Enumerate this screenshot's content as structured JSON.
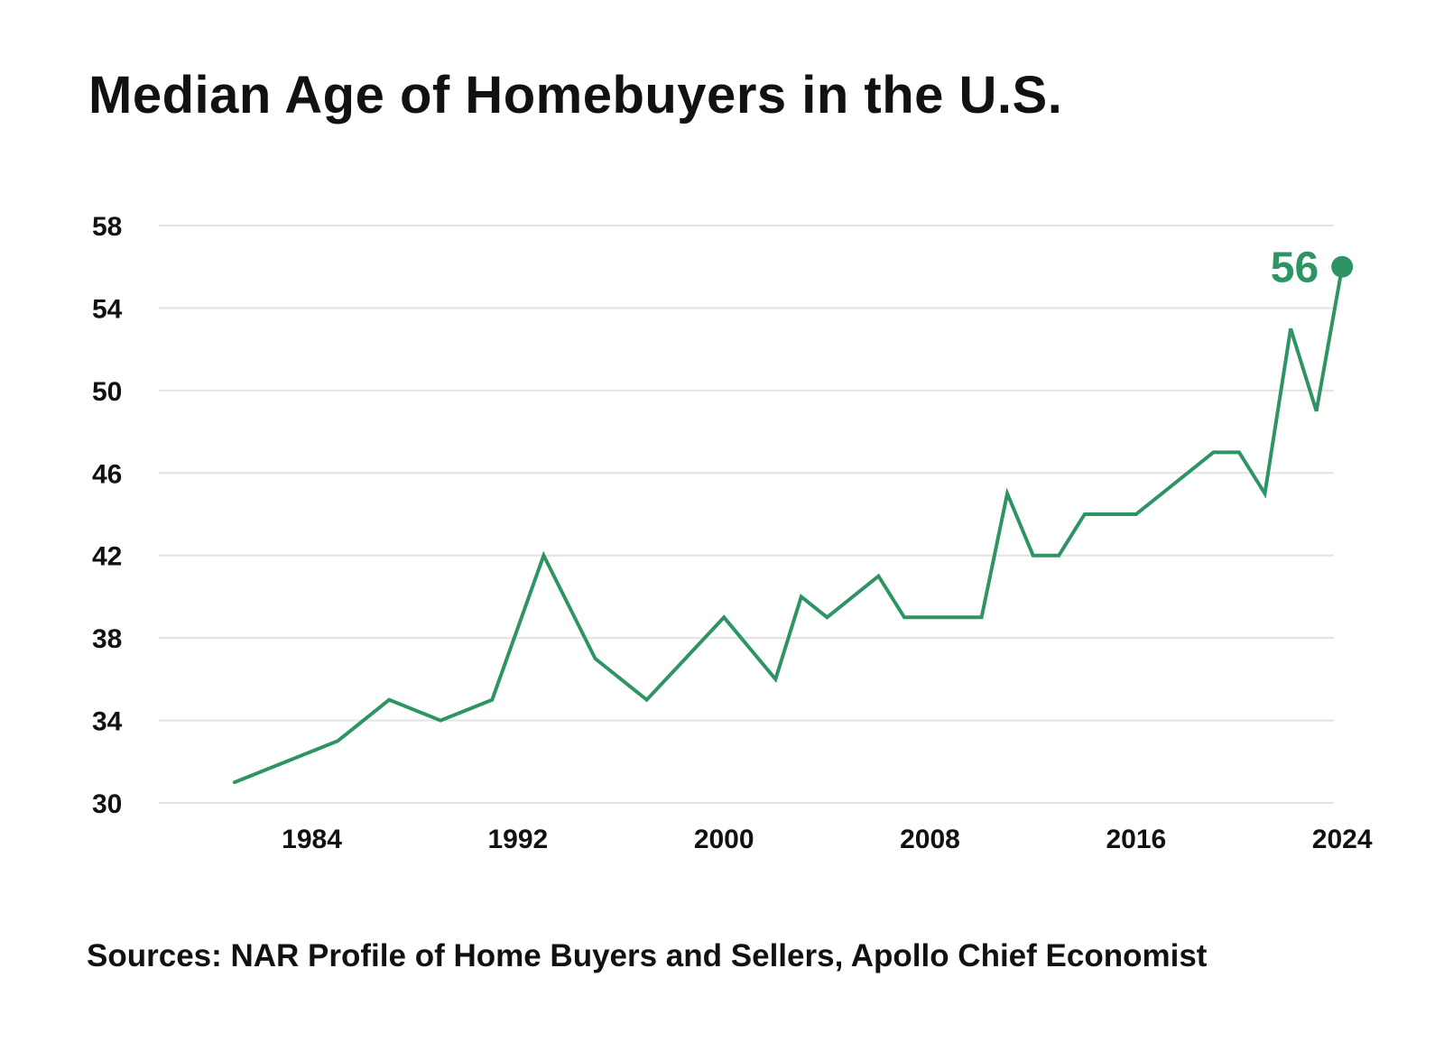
{
  "chart_data": {
    "type": "line",
    "title": "Median Age of Homebuyers in the U.S.",
    "xlabel": "",
    "ylabel": "",
    "x_ticks": [
      "1984",
      "1992",
      "2000",
      "2008",
      "2016",
      "2024"
    ],
    "y_ticks": [
      "30",
      "34",
      "38",
      "42",
      "46",
      "50",
      "54",
      "58"
    ],
    "ylim": [
      30,
      58
    ],
    "xlim": [
      1980,
      2025
    ],
    "grid": "horizontal",
    "legend": "none",
    "colors": {
      "line": "#2e9464",
      "grid": "#e3e3e3",
      "text": "#111111"
    },
    "series": [
      {
        "x": [
          1981,
          1985,
          1987,
          1989,
          1991,
          1993,
          1995,
          1997,
          2000,
          2002,
          2003,
          2004,
          2006,
          2007,
          2010,
          2011,
          2012,
          2013,
          2014,
          2016,
          2019,
          2020,
          2021,
          2022,
          2023,
          2024
        ],
        "y": [
          31,
          33,
          35,
          34,
          35,
          42,
          37,
          35,
          39,
          36,
          40,
          39,
          41,
          39,
          39,
          45,
          42,
          42,
          44,
          44,
          47,
          47,
          45,
          53,
          49,
          56
        ]
      }
    ],
    "annotations": [
      {
        "text": "56",
        "x": 2024,
        "y": 56
      }
    ]
  },
  "source": "Sources: NAR Profile of Home Buyers and Sellers, Apollo Chief Economist"
}
